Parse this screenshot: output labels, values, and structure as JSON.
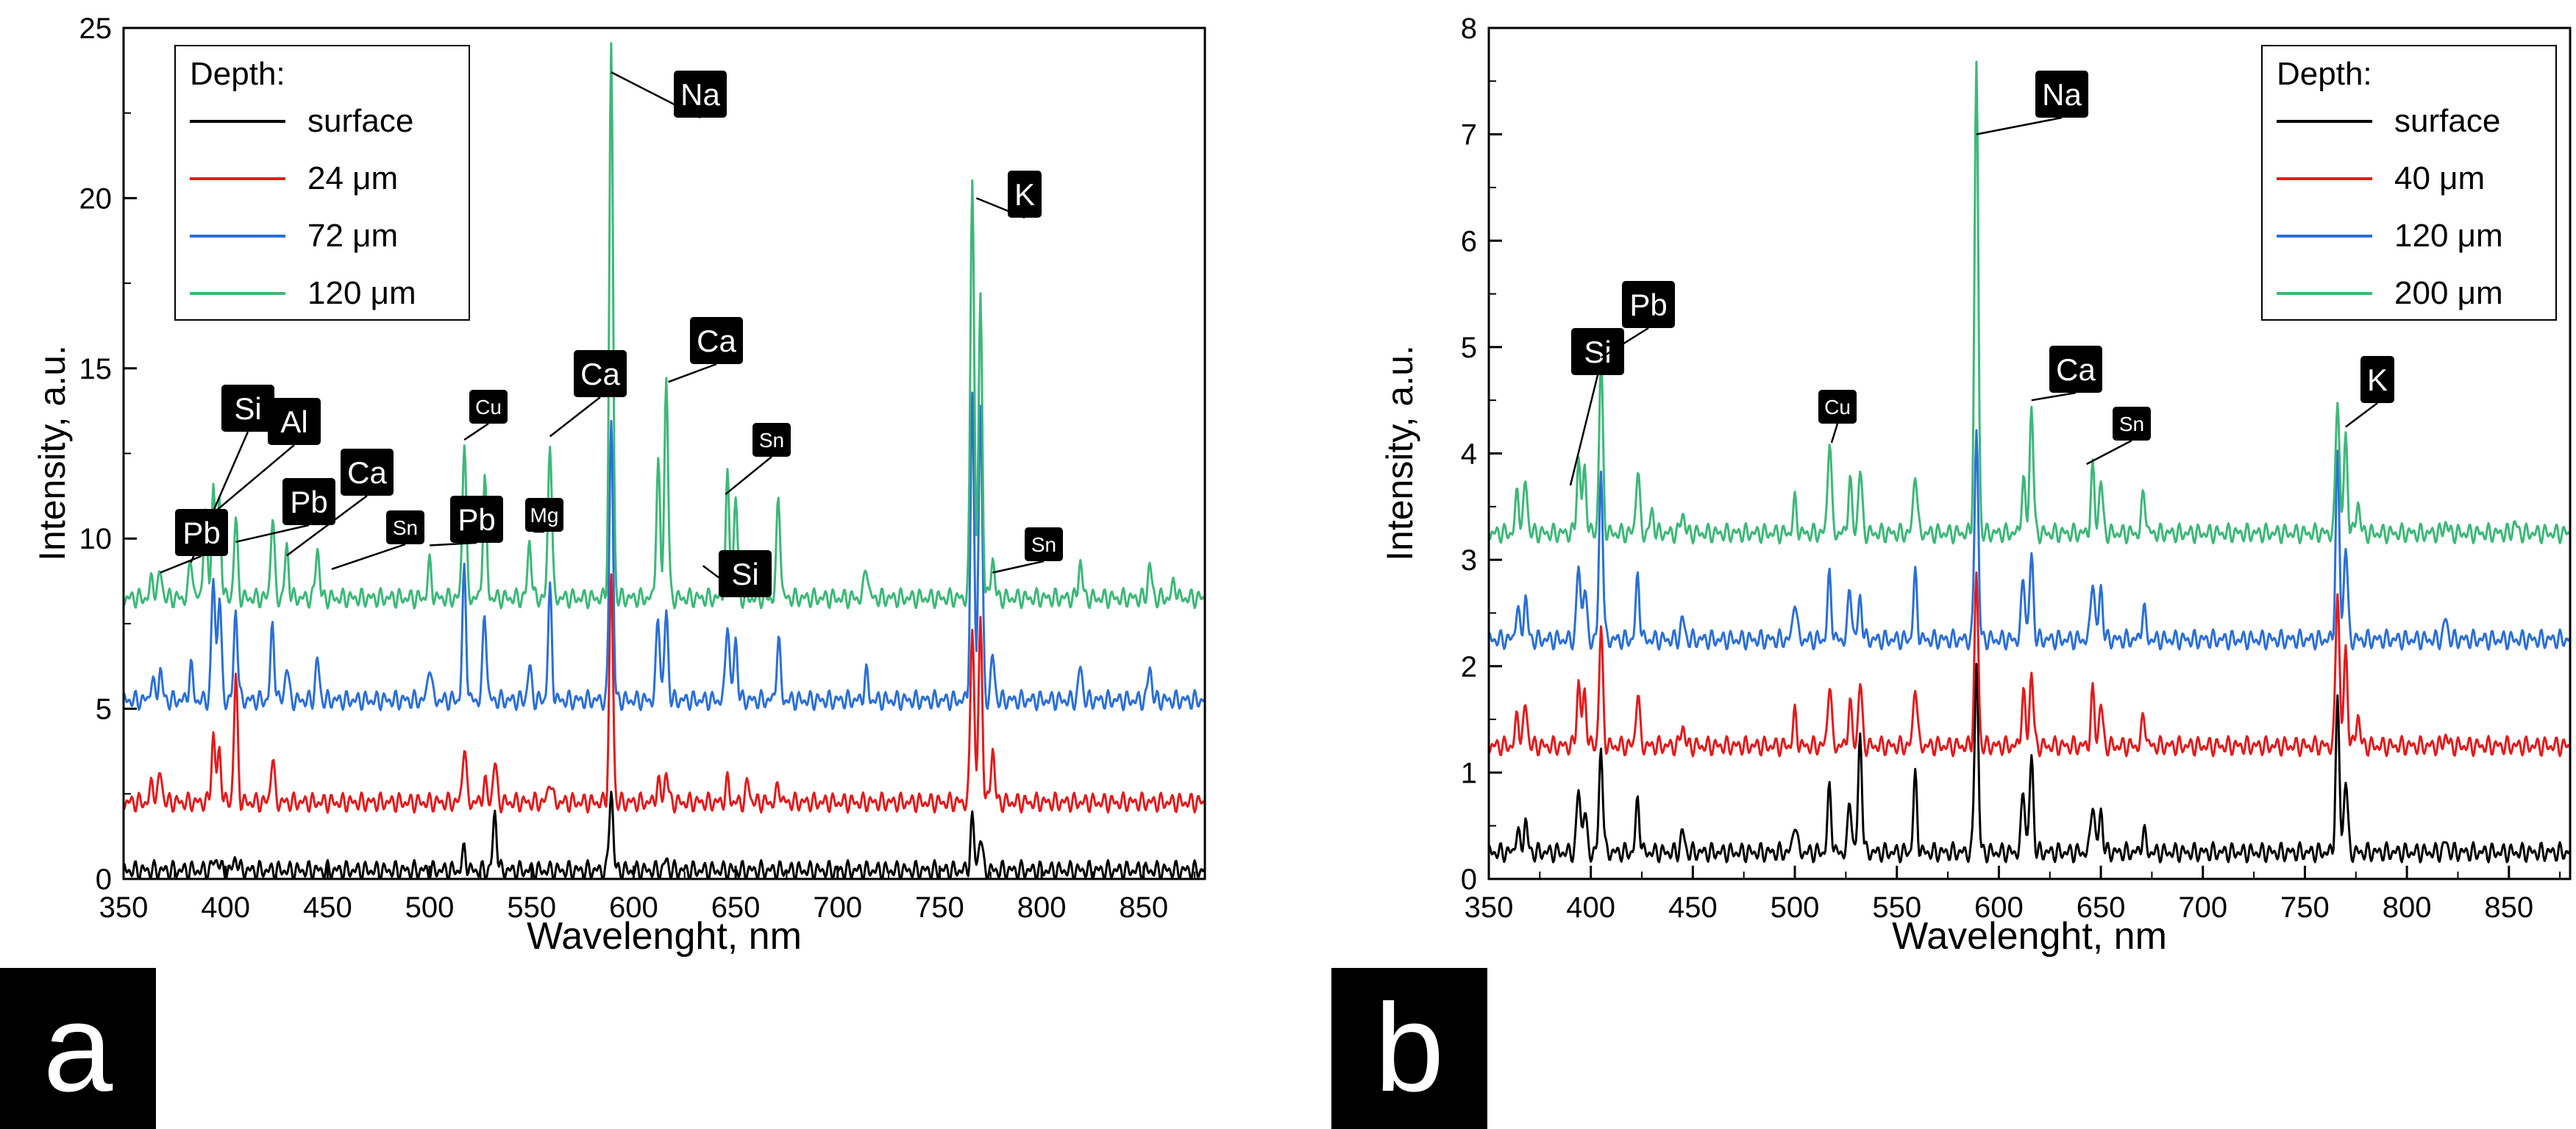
{
  "chart_data": [
    {
      "type": "line",
      "panel_label": "a",
      "xlabel": "Wavelenght, nm",
      "ylabel": "Intensity, a.u.",
      "xlim": [
        350,
        880
      ],
      "ylim": [
        0,
        25
      ],
      "xticks": [
        350,
        400,
        450,
        500,
        550,
        600,
        650,
        700,
        750,
        800,
        850
      ],
      "yticks": [
        0,
        5,
        10,
        15,
        20,
        25
      ],
      "legend": {
        "title": "Depth:",
        "position": "top-left",
        "entries": [
          {
            "label": "surface",
            "color": "#000000"
          },
          {
            "label": "24 μm",
            "color": "#e31a1c"
          },
          {
            "label": "72 μm",
            "color": "#2b6fd6"
          },
          {
            "label": "120 μm",
            "color": "#3cb878"
          }
        ]
      },
      "series": [
        {
          "name": "surface",
          "color": "#000000",
          "baseline": 0.25,
          "peaks": [
            [
              394,
              0.2
            ],
            [
              396,
              0.3
            ],
            [
              405,
              0.4
            ],
            [
              517,
              0.6
            ],
            [
              532,
              1.7
            ],
            [
              589,
              2.4
            ],
            [
              616,
              0.3
            ],
            [
              766,
              1.5
            ],
            [
              770,
              1.0
            ]
          ]
        },
        {
          "name": "24 μm",
          "color": "#e31a1c",
          "baseline": 2.25,
          "peaks": [
            [
              364,
              0.6
            ],
            [
              368,
              0.9
            ],
            [
              394,
              2.0
            ],
            [
              397,
              1.5
            ],
            [
              405,
              3.7
            ],
            [
              423,
              1.3
            ],
            [
              517,
              1.7
            ],
            [
              527,
              0.6
            ],
            [
              532,
              1.2
            ],
            [
              559,
              0.7
            ],
            [
              589,
              6.6
            ],
            [
              612,
              0.6
            ],
            [
              616,
              0.9
            ],
            [
              646,
              0.6
            ],
            [
              656,
              0.6
            ],
            [
              671,
              0.5
            ],
            [
              766,
              5.3
            ],
            [
              770,
              5.3
            ],
            [
              776,
              1.6
            ]
          ]
        },
        {
          "name": "72 μm",
          "color": "#2b6fd6",
          "baseline": 5.25,
          "peaks": [
            [
              364,
              0.6
            ],
            [
              368,
              0.9
            ],
            [
              383,
              1.0
            ],
            [
              394,
              3.6
            ],
            [
              397,
              3.1
            ],
            [
              405,
              2.7
            ],
            [
              423,
              2.2
            ],
            [
              430,
              1.0
            ],
            [
              445,
              1.2
            ],
            [
              500,
              1.1
            ],
            [
              517,
              3.8
            ],
            [
              527,
              2.6
            ],
            [
              549,
              1.0
            ],
            [
              559,
              3.2
            ],
            [
              589,
              8.3
            ],
            [
              612,
              2.5
            ],
            [
              616,
              2.6
            ],
            [
              646,
              2.4
            ],
            [
              650,
              1.8
            ],
            [
              671,
              1.8
            ],
            [
              714,
              0.8
            ],
            [
              766,
              8.8
            ],
            [
              770,
              8.8
            ],
            [
              776,
              1.3
            ],
            [
              819,
              1.0
            ],
            [
              853,
              1.0
            ]
          ]
        },
        {
          "name": "120 μm",
          "color": "#3cb878",
          "baseline": 8.25,
          "peaks": [
            [
              364,
              0.6
            ],
            [
              368,
              0.8
            ],
            [
              383,
              1.2
            ],
            [
              390,
              2.6
            ],
            [
              394,
              3.3
            ],
            [
              397,
              2.8
            ],
            [
              405,
              2.3
            ],
            [
              423,
              2.4
            ],
            [
              430,
              1.5
            ],
            [
              445,
              1.5
            ],
            [
              500,
              1.0
            ],
            [
              517,
              4.7
            ],
            [
              527,
              3.5
            ],
            [
              549,
              1.7
            ],
            [
              559,
              4.7
            ],
            [
              589,
              16.2
            ],
            [
              612,
              4.0
            ],
            [
              616,
              6.5
            ],
            [
              646,
              3.5
            ],
            [
              650,
              3.0
            ],
            [
              671,
              3.0
            ],
            [
              714,
              1.0
            ],
            [
              766,
              12.5
            ],
            [
              770,
              8.8
            ],
            [
              776,
              1.2
            ],
            [
              819,
              1.1
            ],
            [
              853,
              1.0
            ],
            [
              865,
              0.5
            ]
          ]
        }
      ],
      "annotations": [
        {
          "text": "Na",
          "target": [
            589,
            23.7
          ]
        },
        {
          "text": "K",
          "target": [
            768,
            20.0
          ]
        },
        {
          "text": "Ca",
          "target": [
            559,
            13.0
          ]
        },
        {
          "text": "Ca",
          "target": [
            617,
            14.6
          ]
        },
        {
          "text": "Cu",
          "target": [
            517,
            12.9
          ]
        },
        {
          "text": "Mg",
          "target": [
            551,
            10.2
          ]
        },
        {
          "text": "Si",
          "target": [
            383,
            9.3
          ]
        },
        {
          "text": "Al",
          "target": [
            395,
            10.8
          ]
        },
        {
          "text": "Pb",
          "target": [
            368,
            9.0
          ]
        },
        {
          "text": "Pb",
          "target": [
            405,
            9.9
          ]
        },
        {
          "text": "Pb",
          "target": [
            500,
            9.8
          ]
        },
        {
          "text": "Ca",
          "target": [
            430,
            9.5
          ]
        },
        {
          "text": "Sn",
          "target": [
            452,
            9.1
          ]
        },
        {
          "text": "Si",
          "target": [
            634,
            9.2
          ]
        },
        {
          "text": "Sn",
          "target": [
            645,
            11.3
          ]
        },
        {
          "text": "Sn",
          "target": [
            776,
            9.0
          ]
        }
      ]
    },
    {
      "type": "line",
      "panel_label": "b",
      "xlabel": "Wavelenght, nm",
      "ylabel": "Intensity, a.u.",
      "xlim": [
        350,
        880
      ],
      "ylim": [
        0,
        8
      ],
      "xticks": [
        350,
        400,
        450,
        500,
        550,
        600,
        650,
        700,
        750,
        800,
        850
      ],
      "yticks": [
        0,
        1,
        2,
        3,
        4,
        5,
        6,
        7,
        8
      ],
      "legend": {
        "title": "Depth:",
        "position": "top-right",
        "entries": [
          {
            "label": "surface",
            "color": "#000000"
          },
          {
            "label": "40 μm",
            "color": "#e31a1c"
          },
          {
            "label": "120 μm",
            "color": "#2b6fd6"
          },
          {
            "label": "200 μm",
            "color": "#3cb878"
          }
        ]
      },
      "series": [
        {
          "name": "surface",
          "color": "#000000",
          "baseline": 0.25,
          "peaks": [
            [
              364,
              0.2
            ],
            [
              368,
              0.3
            ],
            [
              394,
              0.6
            ],
            [
              397,
              0.4
            ],
            [
              405,
              1.0
            ],
            [
              423,
              0.5
            ],
            [
              445,
              0.2
            ],
            [
              500,
              0.3
            ],
            [
              517,
              0.6
            ],
            [
              527,
              0.5
            ],
            [
              532,
              1.1
            ],
            [
              559,
              0.7
            ],
            [
              589,
              1.8
            ],
            [
              612,
              0.6
            ],
            [
              616,
              0.9
            ],
            [
              646,
              0.5
            ],
            [
              650,
              0.4
            ],
            [
              671,
              0.2
            ],
            [
              766,
              1.4
            ],
            [
              770,
              0.7
            ],
            [
              819,
              0.1
            ]
          ]
        },
        {
          "name": "40 μm",
          "color": "#e31a1c",
          "baseline": 1.25,
          "peaks": [
            [
              364,
              0.3
            ],
            [
              368,
              0.4
            ],
            [
              394,
              0.6
            ],
            [
              397,
              0.5
            ],
            [
              405,
              1.1
            ],
            [
              423,
              0.5
            ],
            [
              445,
              0.2
            ],
            [
              500,
              0.3
            ],
            [
              517,
              0.6
            ],
            [
              527,
              0.4
            ],
            [
              532,
              0.6
            ],
            [
              559,
              0.6
            ],
            [
              589,
              1.6
            ],
            [
              612,
              0.5
            ],
            [
              616,
              0.7
            ],
            [
              646,
              0.5
            ],
            [
              650,
              0.4
            ],
            [
              671,
              0.3
            ],
            [
              766,
              1.5
            ],
            [
              770,
              0.9
            ],
            [
              776,
              0.3
            ],
            [
              819,
              0.1
            ]
          ]
        },
        {
          "name": "120 μm",
          "color": "#2b6fd6",
          "baseline": 2.25,
          "peaks": [
            [
              364,
              0.3
            ],
            [
              368,
              0.4
            ],
            [
              394,
              0.7
            ],
            [
              397,
              0.5
            ],
            [
              405,
              1.6
            ],
            [
              423,
              0.6
            ],
            [
              445,
              0.2
            ],
            [
              500,
              0.4
            ],
            [
              517,
              0.6
            ],
            [
              527,
              0.5
            ],
            [
              532,
              0.4
            ],
            [
              559,
              0.6
            ],
            [
              589,
              2.0
            ],
            [
              612,
              0.6
            ],
            [
              616,
              0.8
            ],
            [
              646,
              0.6
            ],
            [
              650,
              0.5
            ],
            [
              671,
              0.3
            ],
            [
              766,
              1.7
            ],
            [
              770,
              0.9
            ],
            [
              819,
              0.2
            ]
          ]
        },
        {
          "name": "200 μm",
          "color": "#3cb878",
          "baseline": 3.25,
          "peaks": [
            [
              364,
              0.4
            ],
            [
              368,
              0.5
            ],
            [
              394,
              0.7
            ],
            [
              397,
              0.6
            ],
            [
              405,
              1.65
            ],
            [
              423,
              0.6
            ],
            [
              430,
              0.2
            ],
            [
              445,
              0.2
            ],
            [
              500,
              0.3
            ],
            [
              517,
              0.9
            ],
            [
              527,
              0.5
            ],
            [
              532,
              0.6
            ],
            [
              559,
              0.6
            ],
            [
              589,
              4.4
            ],
            [
              612,
              0.5
            ],
            [
              616,
              1.2
            ],
            [
              646,
              0.6
            ],
            [
              650,
              0.5
            ],
            [
              671,
              0.4
            ],
            [
              766,
              1.3
            ],
            [
              770,
              0.9
            ],
            [
              776,
              0.3
            ],
            [
              819,
              0.1
            ],
            [
              853,
              0.1
            ]
          ]
        }
      ],
      "annotations": [
        {
          "text": "Na",
          "target": [
            589,
            7.0
          ]
        },
        {
          "text": "Si",
          "target": [
            390,
            3.7
          ]
        },
        {
          "text": "Pb",
          "target": [
            405,
            4.9
          ]
        },
        {
          "text": "Cu",
          "target": [
            518,
            4.1
          ]
        },
        {
          "text": "Ca",
          "target": [
            616,
            4.5
          ]
        },
        {
          "text": "Sn",
          "target": [
            643,
            3.9
          ]
        },
        {
          "text": "K",
          "target": [
            770,
            4.25
          ]
        }
      ]
    }
  ]
}
